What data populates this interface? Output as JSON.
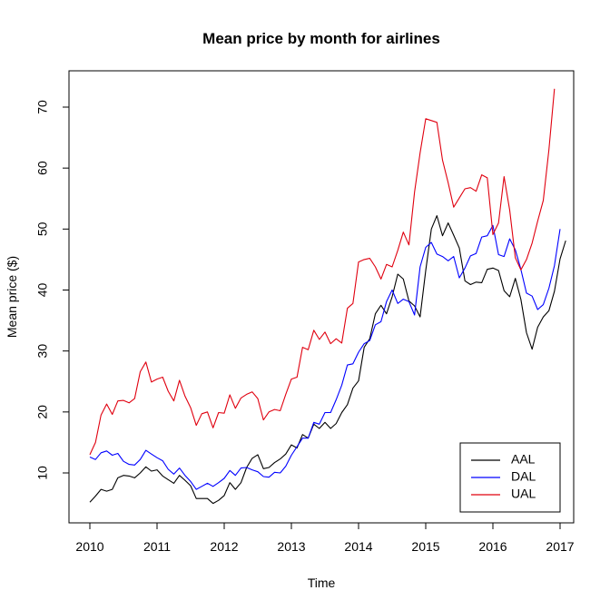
{
  "chart_data": {
    "type": "line",
    "title": "Mean price by month for airlines",
    "xlabel": "Time",
    "ylabel": "Mean price ($)",
    "xlim": [
      2010,
      2017
    ],
    "ylim": [
      3,
      76
    ],
    "x_ticks": [
      2010,
      2011,
      2012,
      2013,
      2014,
      2015,
      2016,
      2017
    ],
    "x_tick_labels": [
      "2010",
      "2011",
      "2012",
      "2013",
      "2014",
      "2015",
      "2016",
      "2017"
    ],
    "y_ticks": [
      10,
      20,
      30,
      40,
      50,
      60,
      70
    ],
    "y_tick_labels": [
      "10",
      "20",
      "30",
      "40",
      "50",
      "60",
      "70"
    ],
    "grid": false,
    "legend_position": "bottom-right",
    "x_start": 2010,
    "x_step": 0.0833333,
    "series": [
      {
        "name": "AAL",
        "color": "#000000",
        "values": [
          5.2,
          6.2,
          7.3,
          7.0,
          7.3,
          9.2,
          9.6,
          9.5,
          9.2,
          10.0,
          11.0,
          10.3,
          10.5,
          9.5,
          8.9,
          8.3,
          9.6,
          8.8,
          7.9,
          5.8,
          5.8,
          5.8,
          5.0,
          5.5,
          6.3,
          8.4,
          7.3,
          8.4,
          10.9,
          12.4,
          13.0,
          10.7,
          10.9,
          11.7,
          12.3,
          13.1,
          14.6,
          14.1,
          16.3,
          15.7,
          18.0,
          17.3,
          18.3,
          17.3,
          18.1,
          19.9,
          21.2,
          23.9,
          25.1,
          30.6,
          32.0,
          36.1,
          37.5,
          36.1,
          38.9,
          42.6,
          41.8,
          38.2,
          37.4,
          35.6,
          43.2,
          50.0,
          52.2,
          48.9,
          51.0,
          49.0,
          46.9,
          41.5,
          40.9,
          41.3,
          41.2,
          43.4,
          43.6,
          43.2,
          39.9,
          38.9,
          41.9,
          38.5,
          33.0,
          30.3,
          33.9,
          35.6,
          36.6,
          39.8,
          45.1,
          48.1
        ]
      },
      {
        "name": "DAL",
        "color": "#0000ff",
        "values": [
          12.6,
          12.2,
          13.3,
          13.6,
          12.9,
          13.2,
          11.9,
          11.4,
          11.3,
          12.2,
          13.7,
          13.1,
          12.5,
          12.0,
          10.6,
          9.8,
          10.8,
          9.6,
          8.6,
          7.3,
          7.8,
          8.3,
          7.8,
          8.4,
          9.1,
          10.4,
          9.6,
          10.8,
          10.9,
          10.5,
          10.2,
          9.4,
          9.3,
          10.1,
          10.0,
          11.1,
          12.9,
          14.3,
          15.7,
          15.7,
          18.3,
          18.0,
          19.9,
          19.9,
          22.0,
          24.4,
          27.7,
          27.9,
          29.8,
          31.2,
          31.7,
          34.3,
          34.8,
          38.1,
          40.0,
          37.8,
          38.5,
          38.1,
          35.9,
          43.8,
          47.0,
          47.8,
          45.9,
          45.5,
          44.8,
          45.5,
          42.0,
          43.6,
          45.6,
          46.0,
          48.7,
          48.9,
          50.6,
          45.8,
          45.5,
          48.4,
          46.6,
          43.4,
          39.5,
          39.0,
          36.8,
          37.6,
          40.3,
          44.0,
          50.0
        ]
      },
      {
        "name": "UAL",
        "color": "#e0000f",
        "values": [
          13.0,
          15.0,
          19.5,
          21.3,
          19.6,
          21.8,
          21.9,
          21.5,
          22.2,
          26.6,
          28.2,
          24.9,
          25.4,
          25.7,
          23.4,
          21.8,
          25.2,
          22.6,
          20.7,
          17.8,
          19.7,
          20.0,
          17.4,
          19.9,
          19.8,
          22.8,
          20.6,
          22.3,
          22.9,
          23.3,
          22.2,
          18.7,
          20.0,
          20.4,
          20.2,
          22.9,
          25.4,
          25.7,
          30.6,
          30.2,
          33.4,
          31.9,
          33.1,
          31.2,
          32.0,
          31.3,
          37.0,
          37.8,
          44.6,
          45.0,
          45.2,
          43.8,
          41.8,
          44.2,
          43.8,
          46.5,
          49.5,
          47.4,
          56.1,
          62.5,
          68.1,
          67.8,
          67.5,
          61.3,
          57.6,
          53.6,
          55.1,
          56.6,
          56.8,
          56.2,
          58.9,
          58.4,
          49.1,
          51.0,
          58.6,
          53.1,
          45.3,
          43.3,
          45.0,
          47.7,
          51.3,
          54.7,
          63.0,
          73.0
        ]
      }
    ]
  }
}
